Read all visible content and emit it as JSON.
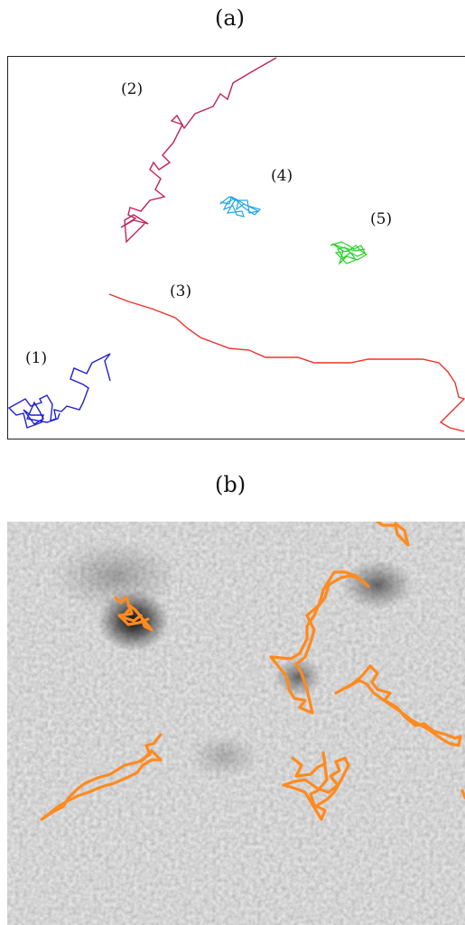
{
  "figure": {
    "panel_a_label": "(a)",
    "panel_b_label": "(b)",
    "trajectories_a": [
      {
        "label": "(1)",
        "color": "#1f1fd6"
      },
      {
        "label": "(2)",
        "color": "#c0225a"
      },
      {
        "label": "(3)",
        "color": "#f0302a"
      },
      {
        "label": "(4)",
        "color": "#20a8e0"
      },
      {
        "label": "(5)",
        "color": "#21d421"
      }
    ],
    "panel_b_track_color": "#ff8a1f",
    "panel_b_background": "grayscale-noise"
  }
}
